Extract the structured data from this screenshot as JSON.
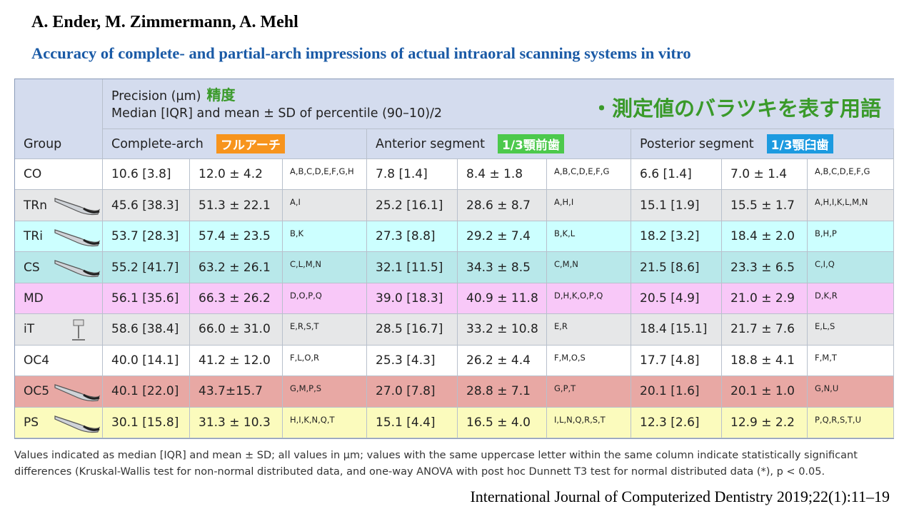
{
  "header": {
    "authors": "A. Ender, M. Zimmermann, A. Mehl",
    "title": "Accuracy of complete- and partial-arch impressions of actual intraoral scanning systems in vitro"
  },
  "table": {
    "precision_label": "Precision (µm)",
    "precision_jp": "精度",
    "subtitle": "Median [IQR] and mean ± SD of percentile (90–10)/2",
    "note_jp": "・測定値のバラツキを表す用語",
    "group_header": "Group",
    "segments": [
      {
        "name": "Complete-arch",
        "badge": "フルアーチ"
      },
      {
        "name": "Anterior segment",
        "badge": "1/3顎前歯"
      },
      {
        "name": "Posterior segment",
        "badge": "1/3顎臼歯"
      }
    ],
    "rows": [
      [
        "CO",
        "10.6 [3.8]",
        "12.0 ± 4.2",
        "A,B,C,D,E,F,G,H",
        "7.8 [1.4]",
        "8.4 ± 1.8",
        "A,B,C,D,E,F,G",
        "6.6 [1.4]",
        "7.0 ± 1.4",
        "A,B,C,D,E,F,G"
      ],
      [
        "TRn",
        "45.6 [38.3]",
        "51.3 ± 22.1",
        "A,I",
        "25.2 [16.1]",
        "28.6 ± 8.7",
        "A,H,I",
        "15.1 [1.9]",
        "15.5 ± 1.7",
        "A,H,I,K,L,M,N"
      ],
      [
        "TRi",
        "53.7 [28.3]",
        "57.4 ± 23.5",
        "B,K",
        "27.3 [8.8]",
        "29.2 ± 7.4",
        "B,K,L",
        "18.2 [3.2]",
        "18.4 ± 2.0",
        "B,H,P"
      ],
      [
        "CS",
        "55.2 [41.7]",
        "63.2 ± 26.1",
        "C,L,M,N",
        "32.1 [11.5]",
        "34.3 ± 8.5",
        "C,M,N",
        "21.5 [8.6]",
        "23.3 ± 6.5",
        "C,I,Q"
      ],
      [
        "MD",
        "56.1 [35.6]",
        "66.3 ± 26.2",
        "D,O,P,Q",
        "39.0 [18.3]",
        "40.9 ± 11.8",
        "D,H,K,O,P,Q",
        "20.5 [4.9]",
        "21.0 ± 2.9",
        "D,K,R"
      ],
      [
        "iT",
        "58.6 [38.4]",
        "66.0 ± 31.0",
        "E,R,S,T",
        "28.5 [16.7]",
        "33.2 ± 10.8",
        "E,R",
        "18.4 [15.1]",
        "21.7 ± 7.6",
        "E,L,S"
      ],
      [
        "OC4",
        "40.0 [14.1]",
        "41.2 ± 12.0",
        "F,L,O,R",
        "25.3 [4.3]",
        "26.2 ± 4.4",
        "F,M,O,S",
        "17.7 [4.8]",
        "18.8 ± 4.1",
        "F,M,T"
      ],
      [
        "OC5",
        "40.1 [22.0]",
        "43.7±15.7",
        "G,M,P,S",
        "27.0 [7.8]",
        "28.8 ± 7.1",
        "G,P,T",
        "20.1 [1.6]",
        "20.1 ± 1.0",
        "G,N,U"
      ],
      [
        "PS",
        "30.1 [15.8]",
        "31.3 ± 10.3",
        "H,I,K,N,Q,T",
        "15.1 [4.4]",
        "16.5 ± 4.0",
        "I,L,N,Q,R,S,T",
        "12.3 [2.6]",
        "12.9 ± 2.2",
        "P,Q,R,S,T,U"
      ]
    ]
  },
  "footnote": "Values indicated as median [IQR] and mean ± SD; all values in µm; values with the same uppercase letter within the same column indicate statistically significant differences (Kruskal-Wallis test for non-normal distributed data, and one-way ANOVA with post hoc Dunnett T3 test for normal distributed data (*), p < 0.05.",
  "citation": "International Journal of Computerized Dentistry 2019;22(1):11–19"
}
